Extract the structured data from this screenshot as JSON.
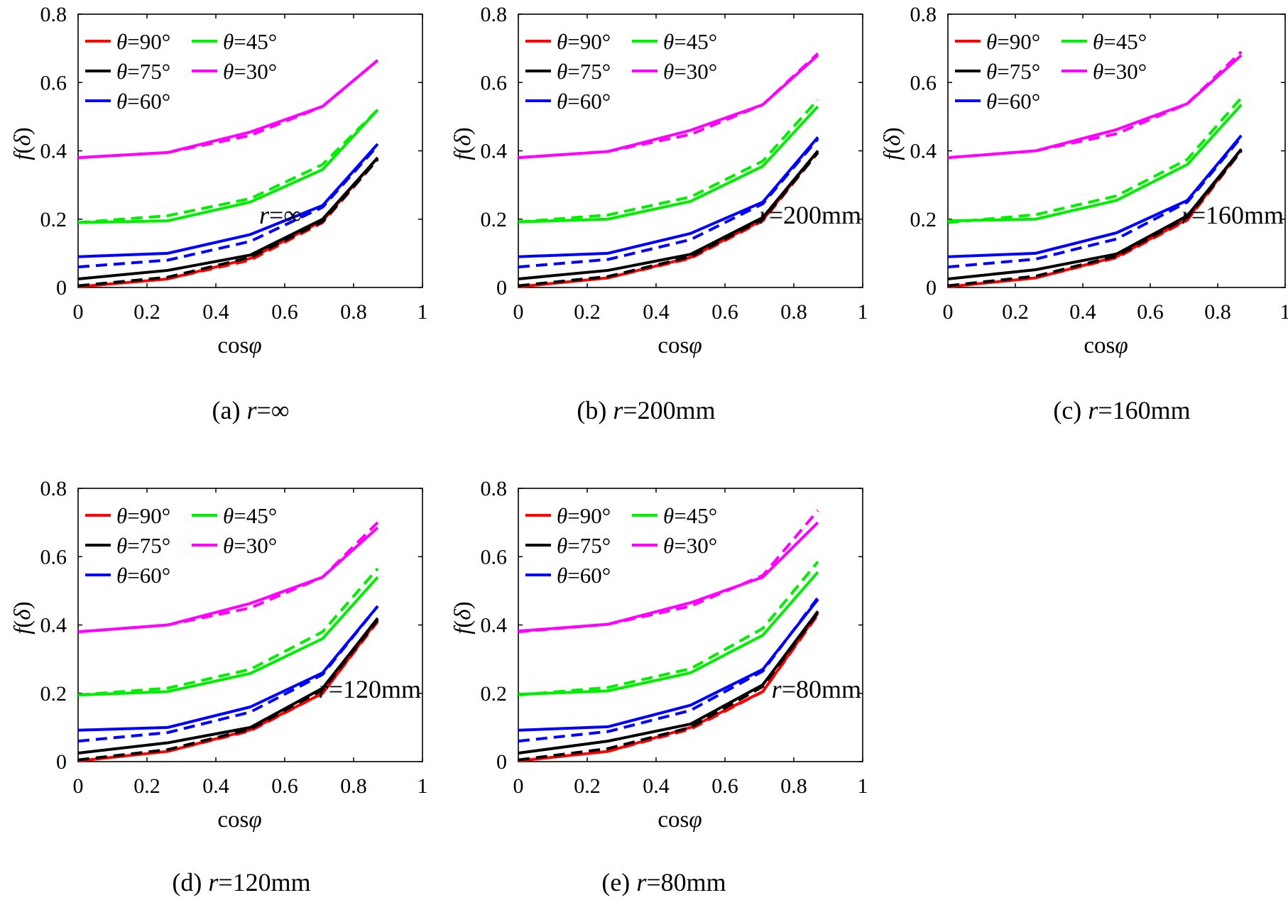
{
  "colors": {
    "theta_90": "#ff0000",
    "theta_75": "#000000",
    "theta_60": "#0000ff",
    "theta_45": "#00ee00",
    "theta_30": "#ff00ff"
  },
  "chart_data": [
    {
      "type": "line",
      "caption": "(a) r=∞",
      "annotation": "r=∞",
      "xlabel": "cosφ",
      "ylabel": "f(δ)",
      "xlim": [
        0,
        1
      ],
      "ylim": [
        0,
        0.8
      ],
      "xticks": [
        "0",
        "0.2",
        "0.4",
        "0.6",
        "0.8",
        "1"
      ],
      "yticks": [
        "0",
        "0.2",
        "0.4",
        "0.6",
        "0.8"
      ],
      "legend": {
        "position": "top-left",
        "entries": [
          "θ=90°",
          "θ=45°",
          "θ=75°",
          "θ=30°",
          "θ=60°"
        ]
      },
      "x": [
        0.0,
        0.26,
        0.5,
        0.71,
        0.87
      ],
      "series": [
        {
          "name": "θ=90°",
          "solid": [
            0.002,
            0.025,
            0.085,
            0.195,
            0.38
          ],
          "dashed": [
            0.002,
            0.025,
            0.08,
            0.19,
            0.375
          ]
        },
        {
          "name": "θ=75°",
          "solid": [
            0.025,
            0.05,
            0.095,
            0.2,
            0.38
          ],
          "dashed": [
            0.005,
            0.03,
            0.088,
            0.193,
            0.375
          ]
        },
        {
          "name": "θ=60°",
          "solid": [
            0.09,
            0.1,
            0.155,
            0.24,
            0.42
          ],
          "dashed": [
            0.06,
            0.08,
            0.135,
            0.235,
            0.415
          ]
        },
        {
          "name": "θ=45°",
          "solid": [
            0.19,
            0.195,
            0.25,
            0.345,
            0.52
          ],
          "dashed": [
            0.19,
            0.21,
            0.26,
            0.36,
            0.52
          ]
        },
        {
          "name": "θ=30°",
          "solid": [
            0.38,
            0.395,
            0.455,
            0.53,
            0.665
          ],
          "dashed": [
            0.38,
            0.395,
            0.445,
            0.53,
            0.665
          ]
        }
      ]
    },
    {
      "type": "line",
      "caption": "(b) r=200mm",
      "annotation": "r=200mm",
      "xlabel": "cosφ",
      "ylabel": "f(δ)",
      "xlim": [
        0,
        1
      ],
      "ylim": [
        0,
        0.8
      ],
      "xticks": [
        "0",
        "0.2",
        "0.4",
        "0.6",
        "0.8",
        "1"
      ],
      "yticks": [
        "0",
        "0.2",
        "0.4",
        "0.6",
        "0.8"
      ],
      "legend": {
        "position": "top-left",
        "entries": [
          "θ=90°",
          "θ=45°",
          "θ=75°",
          "θ=30°",
          "θ=60°"
        ]
      },
      "x": [
        0.0,
        0.26,
        0.5,
        0.71,
        0.87
      ],
      "series": [
        {
          "name": "θ=90°",
          "solid": [
            0.002,
            0.028,
            0.088,
            0.198,
            0.4
          ],
          "dashed": [
            0.002,
            0.028,
            0.085,
            0.195,
            0.395
          ]
        },
        {
          "name": "θ=75°",
          "solid": [
            0.025,
            0.05,
            0.097,
            0.205,
            0.4
          ],
          "dashed": [
            0.005,
            0.032,
            0.09,
            0.2,
            0.395
          ]
        },
        {
          "name": "θ=60°",
          "solid": [
            0.09,
            0.1,
            0.158,
            0.25,
            0.44
          ],
          "dashed": [
            0.06,
            0.082,
            0.14,
            0.245,
            0.435
          ]
        },
        {
          "name": "θ=45°",
          "solid": [
            0.192,
            0.2,
            0.252,
            0.355,
            0.53
          ],
          "dashed": [
            0.192,
            0.212,
            0.265,
            0.37,
            0.55
          ]
        },
        {
          "name": "θ=30°",
          "solid": [
            0.38,
            0.398,
            0.46,
            0.535,
            0.68
          ],
          "dashed": [
            0.38,
            0.398,
            0.448,
            0.535,
            0.685
          ]
        }
      ]
    },
    {
      "type": "line",
      "caption": "(c) r=160mm",
      "annotation": "r=160mm",
      "xlabel": "cosφ",
      "ylabel": "f(δ)",
      "xlim": [
        0,
        1
      ],
      "ylim": [
        0,
        0.8
      ],
      "xticks": [
        "0",
        "0.2",
        "0.4",
        "0.6",
        "0.8",
        "1"
      ],
      "yticks": [
        "0",
        "0.2",
        "0.4",
        "0.6",
        "0.8"
      ],
      "legend": {
        "position": "top-left",
        "entries": [
          "θ=90°",
          "θ=45°",
          "θ=75°",
          "θ=30°",
          "θ=60°"
        ]
      },
      "x": [
        0.0,
        0.26,
        0.5,
        0.71,
        0.87
      ],
      "series": [
        {
          "name": "θ=90°",
          "solid": [
            0.002,
            0.028,
            0.09,
            0.2,
            0.405
          ],
          "dashed": [
            0.002,
            0.028,
            0.087,
            0.197,
            0.4
          ]
        },
        {
          "name": "θ=75°",
          "solid": [
            0.025,
            0.052,
            0.098,
            0.21,
            0.405
          ],
          "dashed": [
            0.005,
            0.033,
            0.092,
            0.205,
            0.4
          ]
        },
        {
          "name": "θ=60°",
          "solid": [
            0.09,
            0.1,
            0.16,
            0.255,
            0.445
          ],
          "dashed": [
            0.06,
            0.083,
            0.142,
            0.25,
            0.44
          ]
        },
        {
          "name": "θ=45°",
          "solid": [
            0.195,
            0.2,
            0.255,
            0.36,
            0.535
          ],
          "dashed": [
            0.19,
            0.213,
            0.268,
            0.375,
            0.555
          ]
        },
        {
          "name": "θ=30°",
          "solid": [
            0.38,
            0.4,
            0.462,
            0.538,
            0.68
          ],
          "dashed": [
            0.38,
            0.4,
            0.45,
            0.538,
            0.69
          ]
        }
      ]
    },
    {
      "type": "line",
      "caption": "(d) r=120mm",
      "annotation": "r=120mm",
      "xlabel": "cosφ",
      "ylabel": "f(δ)",
      "xlim": [
        0,
        1
      ],
      "ylim": [
        0,
        0.8
      ],
      "xticks": [
        "0",
        "0.2",
        "0.4",
        "0.6",
        "0.8",
        "1"
      ],
      "yticks": [
        "0",
        "0.2",
        "0.4",
        "0.6",
        "0.8"
      ],
      "legend": {
        "position": "top-left",
        "entries": [
          "θ=90°",
          "θ=45°",
          "θ=75°",
          "θ=30°",
          "θ=60°"
        ]
      },
      "x": [
        0.0,
        0.26,
        0.5,
        0.71,
        0.87
      ],
      "series": [
        {
          "name": "θ=90°",
          "solid": [
            0.002,
            0.03,
            0.093,
            0.2,
            0.415
          ],
          "dashed": [
            0.002,
            0.03,
            0.09,
            0.2,
            0.41
          ]
        },
        {
          "name": "θ=75°",
          "solid": [
            0.025,
            0.055,
            0.1,
            0.215,
            0.42
          ],
          "dashed": [
            0.005,
            0.035,
            0.095,
            0.21,
            0.415
          ]
        },
        {
          "name": "θ=60°",
          "solid": [
            0.092,
            0.1,
            0.16,
            0.26,
            0.455
          ],
          "dashed": [
            0.06,
            0.085,
            0.145,
            0.255,
            0.455
          ]
        },
        {
          "name": "θ=45°",
          "solid": [
            0.195,
            0.205,
            0.258,
            0.36,
            0.54
          ],
          "dashed": [
            0.195,
            0.215,
            0.27,
            0.38,
            0.565
          ]
        },
        {
          "name": "θ=30°",
          "solid": [
            0.38,
            0.4,
            0.463,
            0.54,
            0.685
          ],
          "dashed": [
            0.38,
            0.4,
            0.45,
            0.54,
            0.7
          ]
        }
      ]
    },
    {
      "type": "line",
      "caption": "(e) r=80mm",
      "annotation": "r=80mm",
      "xlabel": "cosφ",
      "ylabel": "f(δ)",
      "xlim": [
        0,
        1
      ],
      "ylim": [
        0,
        0.8
      ],
      "xticks": [
        "0",
        "0.2",
        "0.4",
        "0.6",
        "0.8",
        "1"
      ],
      "yticks": [
        "0",
        "0.2",
        "0.4",
        "0.6",
        "0.8"
      ],
      "legend": {
        "position": "top-left",
        "entries": [
          "θ=90°",
          "θ=45°",
          "θ=75°",
          "θ=30°",
          "θ=60°"
        ]
      },
      "x": [
        0.0,
        0.26,
        0.5,
        0.71,
        0.87
      ],
      "series": [
        {
          "name": "θ=90°",
          "solid": [
            0.002,
            0.03,
            0.1,
            0.205,
            0.435
          ],
          "dashed": [
            0.002,
            0.03,
            0.095,
            0.205,
            0.43
          ]
        },
        {
          "name": "θ=75°",
          "solid": [
            0.025,
            0.06,
            0.11,
            0.225,
            0.44
          ],
          "dashed": [
            0.005,
            0.038,
            0.1,
            0.22,
            0.435
          ]
        },
        {
          "name": "θ=60°",
          "solid": [
            0.092,
            0.102,
            0.165,
            0.27,
            0.475
          ],
          "dashed": [
            0.06,
            0.088,
            0.15,
            0.265,
            0.48
          ]
        },
        {
          "name": "θ=45°",
          "solid": [
            0.197,
            0.207,
            0.26,
            0.37,
            0.555
          ],
          "dashed": [
            0.195,
            0.217,
            0.272,
            0.39,
            0.585
          ]
        },
        {
          "name": "θ=30°",
          "solid": [
            0.382,
            0.402,
            0.465,
            0.54,
            0.7
          ],
          "dashed": [
            0.38,
            0.402,
            0.455,
            0.545,
            0.735
          ]
        }
      ]
    }
  ]
}
